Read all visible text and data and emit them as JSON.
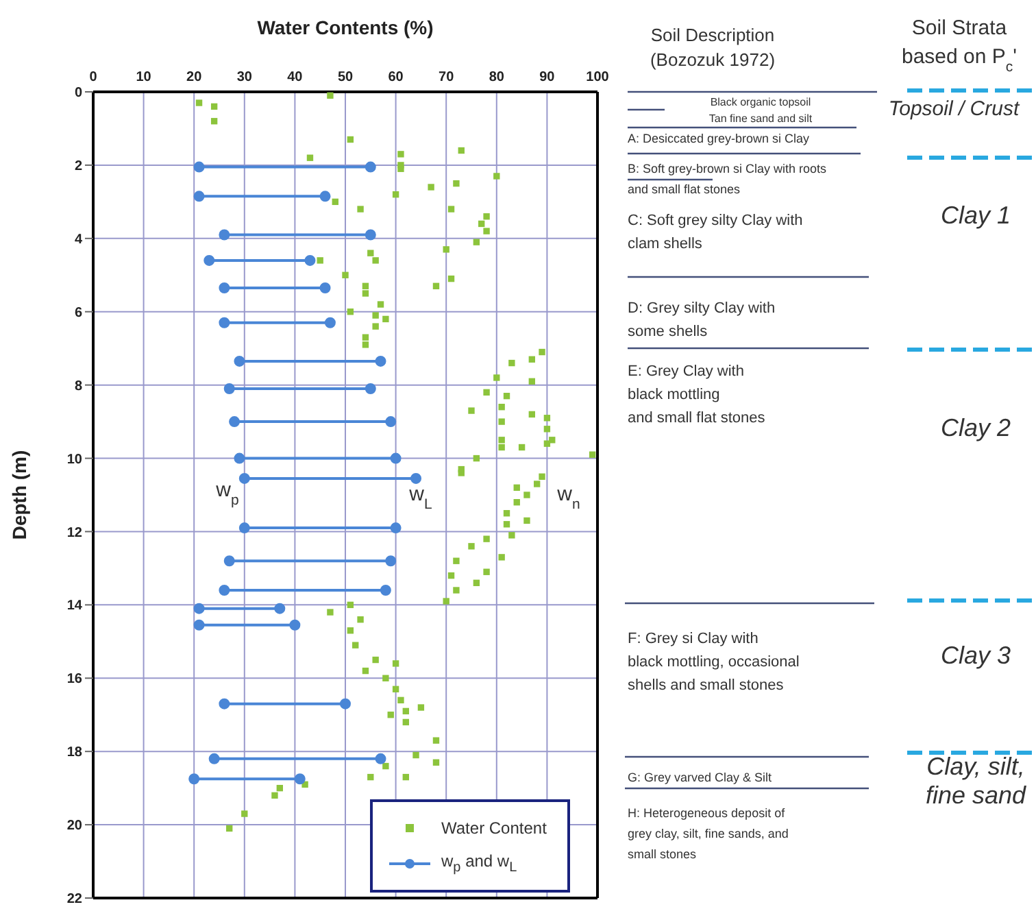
{
  "chart_data": [
    {
      "type": "scatter",
      "xlabel": "Water Contents (%)",
      "ylabel": "Depth (m)",
      "xlim": [
        0,
        100
      ],
      "xticks": [
        0,
        10,
        20,
        30,
        40,
        50,
        60,
        70,
        80,
        90,
        100
      ],
      "ylim": [
        22,
        0
      ],
      "yticks": [
        0,
        2,
        4,
        6,
        8,
        10,
        12,
        14,
        16,
        18,
        20,
        22
      ],
      "grid": true,
      "legend": "bottom right",
      "series": [
        {
          "name": "Water Content",
          "type": "scatter",
          "marker": "square",
          "color": "#8cc43c",
          "x": [
            47,
            21,
            24,
            24,
            51,
            61,
            73,
            43,
            61,
            61,
            80,
            72,
            67,
            48,
            60,
            53,
            71,
            78,
            77,
            78,
            76,
            70,
            55,
            56,
            45,
            50,
            71,
            68,
            54,
            54,
            57,
            51,
            56,
            58,
            56,
            54,
            54,
            89,
            87,
            83,
            80,
            87,
            78,
            82,
            81,
            75,
            87,
            90,
            81,
            90,
            91,
            81,
            81,
            85,
            90,
            99,
            76,
            73,
            73,
            89,
            88,
            84,
            86,
            84,
            82,
            82,
            86,
            83,
            78,
            75,
            81,
            72,
            78,
            71,
            76,
            72,
            70,
            51,
            47,
            53,
            51,
            52,
            56,
            60,
            54,
            58,
            60,
            61,
            65,
            62,
            59,
            62,
            68,
            64,
            68,
            58,
            55,
            62,
            42,
            37,
            36,
            30,
            27
          ],
          "values": [
            0.1,
            0.3,
            0.4,
            0.8,
            1.3,
            1.7,
            1.6,
            1.8,
            2.0,
            2.1,
            2.3,
            2.5,
            2.6,
            3.0,
            2.8,
            3.2,
            3.2,
            3.4,
            3.6,
            3.8,
            4.1,
            4.3,
            4.4,
            4.6,
            4.6,
            5.0,
            5.1,
            5.3,
            5.3,
            5.5,
            5.8,
            6.0,
            6.1,
            6.2,
            6.4,
            6.7,
            6.9,
            7.1,
            7.3,
            7.4,
            7.8,
            7.9,
            8.2,
            8.3,
            8.6,
            8.7,
            8.8,
            8.9,
            9.0,
            9.2,
            9.5,
            9.5,
            9.7,
            9.7,
            9.6,
            9.9,
            10.0,
            10.3,
            10.4,
            10.5,
            10.7,
            10.8,
            11.0,
            11.2,
            11.5,
            11.8,
            11.7,
            12.1,
            12.2,
            12.4,
            12.7,
            12.8,
            13.1,
            13.2,
            13.4,
            13.6,
            13.9,
            14.0,
            14.2,
            14.4,
            14.7,
            15.1,
            15.5,
            15.6,
            15.8,
            16.0,
            16.3,
            16.6,
            16.8,
            16.9,
            17.0,
            17.2,
            17.7,
            18.1,
            18.3,
            18.4,
            18.7,
            18.7,
            18.9,
            19.0,
            19.2,
            19.7,
            20.1
          ]
        },
        {
          "name": "w$_{p}$ and w$_{L}$",
          "type": "line",
          "marker": "circle",
          "line_style": "solid",
          "color": "#4a86d6",
          "x": [
            21,
            55,
            null,
            21,
            46,
            null,
            26,
            55,
            null,
            23,
            43,
            null,
            26,
            46,
            null,
            26,
            47,
            null,
            29,
            57,
            null,
            27,
            55,
            null,
            28,
            59,
            null,
            29,
            60,
            null,
            30,
            64,
            null,
            30,
            60,
            null,
            27,
            59,
            null,
            26,
            58,
            null,
            21,
            37,
            null,
            21,
            40,
            null,
            26,
            50,
            null,
            24,
            57,
            null,
            20,
            41
          ],
          "values": [
            2.05,
            2.05,
            null,
            2.85,
            2.85,
            null,
            3.9,
            3.9,
            null,
            4.6,
            4.6,
            null,
            5.35,
            5.35,
            null,
            6.3,
            6.3,
            null,
            7.35,
            7.35,
            null,
            8.1,
            8.1,
            null,
            9.0,
            9.0,
            null,
            10.0,
            10.0,
            null,
            10.55,
            10.55,
            null,
            11.9,
            11.9,
            null,
            12.8,
            12.8,
            null,
            13.6,
            13.6,
            null,
            14.1,
            14.1,
            null,
            14.55,
            14.55,
            null,
            16.7,
            16.7,
            null,
            18.2,
            18.2,
            null,
            18.75,
            18.75
          ]
        }
      ],
      "annotations": [
        "w$_{p}$",
        "w$_{L}$",
        "w$_{n}$"
      ]
    },
    {
      "type": "other",
      "title": "Soil Description\n(Bozozuk 1972)",
      "annotations": [
        "Black organic topsoil",
        "Tan fine sand and silt",
        "A: Desiccated grey-brown si Clay",
        "B: Soft grey-brown si Clay with roots\nand small flat stones",
        "C: Soft grey silty Clay with\nclam shells",
        "D: Grey silty Clay with\nsome shells",
        "E: Grey Clay with\nblack mottling\nand small flat stones",
        "F: Grey si Clay with\nblack mottling, occasional\nshells and small stones",
        "G: Grey varved Clay & Silt",
        "H: Heterogeneous deposit of\ngrey clay, silt, fine sands, and\nsmall stones"
      ]
    },
    {
      "type": "other",
      "title": "Soil Strata\nbased on P$_{c}$'",
      "annotations": [
        "Topsoil / Crust",
        "Clay 1",
        "Clay 2",
        "Clay 3",
        "Clay, silt,\nfine sand"
      ]
    }
  ]
}
